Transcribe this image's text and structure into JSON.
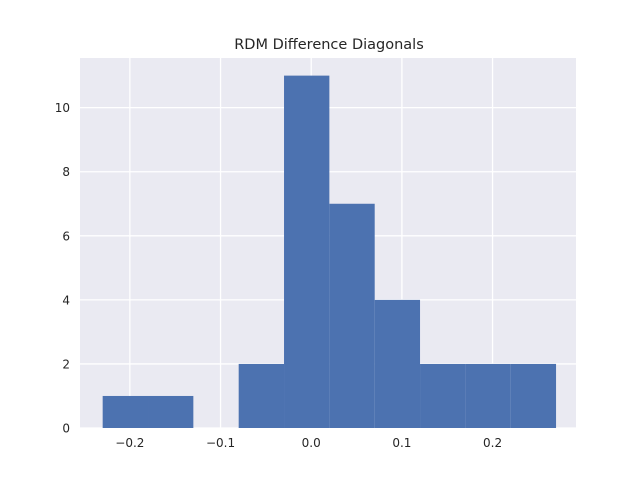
{
  "chart_data": {
    "type": "bar",
    "title": "RDM Difference Diagonals",
    "xlabel": "",
    "ylabel": "",
    "xlim": [
      -0.255,
      0.292
    ],
    "ylim": [
      0,
      11.55
    ],
    "grid": true,
    "x_ticks": [
      -0.2,
      -0.1,
      0.0,
      0.1,
      0.2
    ],
    "x_tick_labels": [
      "−0.2",
      "−0.1",
      "0.0",
      "0.1",
      "0.2"
    ],
    "y_ticks": [
      0,
      2,
      4,
      6,
      8,
      10
    ],
    "y_tick_labels": [
      "0",
      "2",
      "4",
      "6",
      "8",
      "10"
    ],
    "bins": [
      {
        "x0": -0.23,
        "x1": -0.18,
        "count": 1
      },
      {
        "x0": -0.18,
        "x1": -0.13,
        "count": 1
      },
      {
        "x0": -0.13,
        "x1": -0.08,
        "count": 0
      },
      {
        "x0": -0.08,
        "x1": -0.03,
        "count": 2
      },
      {
        "x0": -0.03,
        "x1": 0.02,
        "count": 11
      },
      {
        "x0": 0.02,
        "x1": 0.07,
        "count": 7
      },
      {
        "x0": 0.07,
        "x1": 0.12,
        "count": 4
      },
      {
        "x0": 0.12,
        "x1": 0.17,
        "count": 2
      },
      {
        "x0": 0.17,
        "x1": 0.22,
        "count": 2
      },
      {
        "x0": 0.22,
        "x1": 0.27,
        "count": 2
      }
    ],
    "colors": {
      "bar": "#4c72b0",
      "plot_background": "#eaeaf2",
      "grid": "#ffffff"
    }
  }
}
